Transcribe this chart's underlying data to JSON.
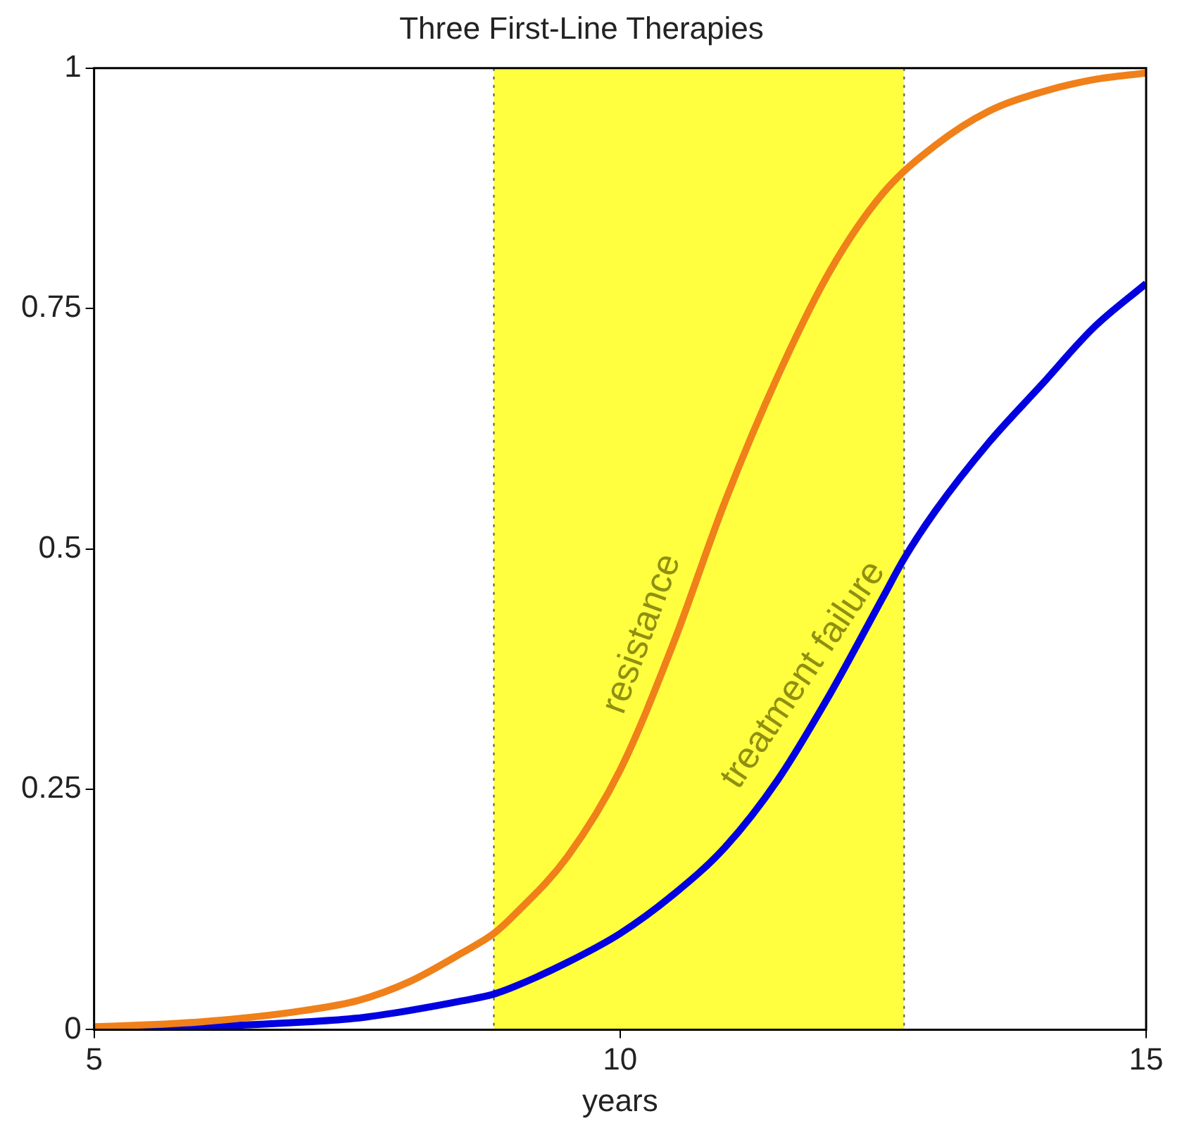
{
  "chart_data": {
    "type": "line",
    "title": "Three First-Line Therapies",
    "xlabel": "years",
    "xlim": [
      5,
      15
    ],
    "xticks": [
      5,
      10,
      15
    ],
    "ylim": [
      0,
      1
    ],
    "yticks": [
      0,
      0.25,
      0.5,
      0.75,
      1
    ],
    "grid": false,
    "legend": false,
    "marker": "none",
    "line_style": "solid",
    "series": [
      {
        "color": "#f0801a",
        "x": [
          5,
          5.5,
          6,
          6.5,
          7,
          7.5,
          8,
          8.5,
          8.8,
          9,
          9.5,
          10,
          10.5,
          11,
          11.5,
          12,
          12.5,
          13,
          13.5,
          14,
          14.5,
          15
        ],
        "values": [
          0.003,
          0.005,
          0.008,
          0.013,
          0.02,
          0.03,
          0.05,
          0.08,
          0.1,
          0.12,
          0.18,
          0.27,
          0.4,
          0.55,
          0.68,
          0.79,
          0.87,
          0.92,
          0.955,
          0.975,
          0.988,
          0.995
        ]
      },
      {
        "color": "#0000e0",
        "x": [
          5,
          6,
          7,
          7.5,
          8,
          8.5,
          8.8,
          9,
          9.5,
          10,
          10.5,
          11,
          11.5,
          12,
          12.5,
          12.7,
          13,
          13.5,
          14,
          14.5,
          15
        ],
        "values": [
          0.001,
          0.003,
          0.008,
          0.012,
          0.02,
          0.03,
          0.037,
          0.045,
          0.07,
          0.1,
          0.14,
          0.19,
          0.26,
          0.35,
          0.45,
          0.49,
          0.54,
          0.61,
          0.67,
          0.73,
          0.776
        ]
      }
    ],
    "bands": [
      {
        "axis": "x",
        "from": 8.8,
        "to": 12.7,
        "color": "#ffff40"
      }
    ],
    "ref_lines": [
      {
        "axis": "x",
        "value": 8.8,
        "color": "#555555",
        "line_style": "dotted"
      },
      {
        "axis": "x",
        "value": 12.7,
        "color": "#555555",
        "line_style": "dotted"
      }
    ],
    "annotations": [
      {
        "text": "resistance",
        "x": 10.5,
        "y": 0.4
      },
      {
        "text": "treatment failure",
        "x": 12,
        "y": 0.35
      }
    ]
  }
}
